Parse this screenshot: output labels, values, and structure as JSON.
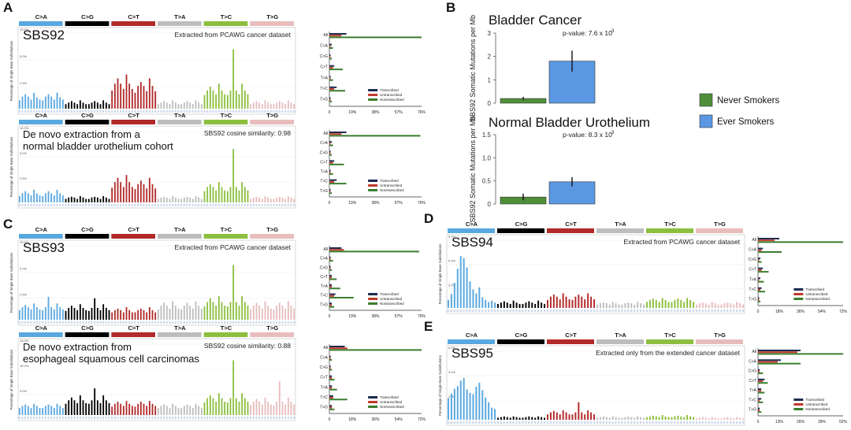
{
  "panel_letters": {
    "A": "A",
    "B": "B",
    "C": "C",
    "D": "D",
    "E": "E"
  },
  "mutation_types": [
    "C>A",
    "C>G",
    "C>T",
    "T>A",
    "T>C",
    "T>G"
  ],
  "type_colors": [
    "#59a8e0",
    "#000000",
    "#b22a2a",
    "#bdbdbd",
    "#8cbf3f",
    "#e8bcbc"
  ],
  "strand_labels": [
    "All",
    "C>A",
    "C>G",
    "C>T",
    "T>A",
    "T>C",
    "T>G"
  ],
  "strand_legend": [
    "Transcribed",
    "Untranscribed",
    "Nontranscribed"
  ],
  "strand_colors": [
    "#1d2b4f",
    "#c0392b",
    "#3a7d2c"
  ],
  "y_axis_title": "Percentage of Single Base Substitutions",
  "chart_data": [
    {
      "type": "bar",
      "panel": "A",
      "signature": "SBS92",
      "source": "Extracted from PCAWG cancer dataset",
      "y_ticks": [
        "10.0%",
        "5.0%",
        "2.5%"
      ],
      "strand_ticks": [
        "0",
        "19%",
        "38%",
        "57%",
        "76%"
      ],
      "strand_max": 76,
      "strand_values": [
        [
          14,
          10,
          76
        ],
        [
          2,
          1,
          3
        ],
        [
          1,
          1,
          2
        ],
        [
          4,
          3,
          11
        ],
        [
          1,
          1,
          3
        ],
        [
          6,
          4,
          13
        ],
        [
          1,
          1,
          2
        ]
      ],
      "context_values": [
        1.1,
        1.6,
        1.9,
        1.6,
        1.2,
        2.1,
        1.5,
        1.2,
        1.1,
        1.6,
        1.9,
        1.6,
        1.2,
        2.1,
        1.5,
        1.2,
        0.6,
        0.8,
        1.0,
        0.8,
        0.6,
        1.1,
        0.8,
        0.6,
        0.6,
        0.8,
        1.0,
        0.8,
        0.6,
        1.1,
        0.8,
        0.6,
        2.4,
        3.3,
        4.0,
        3.3,
        2.6,
        4.5,
        3.3,
        2.6,
        2.1,
        3.0,
        3.5,
        3.0,
        2.3,
        4.0,
        3.0,
        2.3,
        0.6,
        0.8,
        1.0,
        0.8,
        0.6,
        1.1,
        0.8,
        0.6,
        0.6,
        0.8,
        1.0,
        0.8,
        0.6,
        1.1,
        0.8,
        0.6,
        1.8,
        2.4,
        2.9,
        2.4,
        1.9,
        3.3,
        2.4,
        1.9,
        1.8,
        2.4,
        7.8,
        2.4,
        1.9,
        3.3,
        2.4,
        1.9,
        0.6,
        0.8,
        1.0,
        0.8,
        0.6,
        1.1,
        0.8,
        0.6,
        0.6,
        0.8,
        1.0,
        0.8,
        0.6,
        1.1,
        0.8,
        0.6
      ]
    },
    {
      "type": "bar",
      "panel": "A",
      "signature": "De novo extraction from a normal bladder urothelium cohort",
      "source": "SBS92 cosine similarity: 0.98",
      "y_ticks": [
        "10.0%",
        "5.0%",
        "2.5%"
      ],
      "strand_ticks": [
        "0",
        "19%",
        "38%",
        "57%",
        "76%"
      ],
      "strand_max": 76,
      "strand_values": [
        [
          14,
          10,
          75
        ],
        [
          2,
          1,
          3
        ],
        [
          1,
          1,
          2
        ],
        [
          4,
          3,
          12
        ],
        [
          1,
          1,
          3
        ],
        [
          6,
          4,
          14
        ],
        [
          1,
          1,
          2
        ]
      ],
      "context_values": [
        0.9,
        1.3,
        1.6,
        1.3,
        1.0,
        1.8,
        1.3,
        1.0,
        0.9,
        1.3,
        1.6,
        1.3,
        1.0,
        1.8,
        1.3,
        1.0,
        0.5,
        0.7,
        0.8,
        0.7,
        0.5,
        0.9,
        0.7,
        0.5,
        0.5,
        0.7,
        0.8,
        0.7,
        0.5,
        0.9,
        0.7,
        0.5,
        2.1,
        2.9,
        3.5,
        2.9,
        2.2,
        3.9,
        2.9,
        2.2,
        1.9,
        2.6,
        3.1,
        2.6,
        2.0,
        3.5,
        2.6,
        2.0,
        0.5,
        0.7,
        0.8,
        0.7,
        0.5,
        0.9,
        0.7,
        0.5,
        0.5,
        0.7,
        0.8,
        0.7,
        0.5,
        0.9,
        0.7,
        0.5,
        1.6,
        2.2,
        2.6,
        2.2,
        1.7,
        2.9,
        2.2,
        1.7,
        1.6,
        2.2,
        7.6,
        2.2,
        1.7,
        2.9,
        2.2,
        1.7,
        0.5,
        0.7,
        0.8,
        0.7,
        0.5,
        0.9,
        0.7,
        0.5,
        0.5,
        0.7,
        0.8,
        0.7,
        0.5,
        0.9,
        0.7,
        0.5
      ]
    },
    {
      "type": "bar",
      "panel": "C",
      "signature": "SBS93",
      "source": "Extracted from PCAWG cancer dataset",
      "y_ticks": [
        "10.0%",
        "5.0%",
        "2.5%"
      ],
      "strand_ticks": [
        "0",
        "19%",
        "38%",
        "57%",
        "76%"
      ],
      "strand_max": 76,
      "strand_values": [
        [
          10,
          12,
          74
        ],
        [
          1,
          1,
          3
        ],
        [
          1,
          1,
          2
        ],
        [
          2,
          2,
          6
        ],
        [
          2,
          2,
          9
        ],
        [
          5,
          4,
          20
        ],
        [
          2,
          2,
          4
        ]
      ],
      "context_values": [
        1.3,
        1.7,
        2.0,
        1.7,
        1.4,
        2.2,
        1.7,
        1.4,
        1.3,
        1.7,
        3.1,
        1.7,
        1.4,
        2.2,
        1.7,
        1.4,
        1.2,
        1.6,
        1.9,
        1.6,
        1.3,
        2.1,
        1.6,
        1.3,
        1.2,
        1.6,
        2.9,
        1.6,
        1.3,
        2.1,
        1.6,
        1.3,
        1.0,
        1.3,
        1.5,
        1.3,
        1.0,
        1.7,
        1.3,
        1.0,
        1.0,
        1.3,
        1.5,
        1.3,
        1.0,
        1.7,
        1.3,
        1.0,
        1.4,
        1.9,
        2.3,
        1.9,
        1.5,
        2.5,
        1.9,
        1.5,
        1.4,
        1.9,
        2.3,
        1.9,
        1.5,
        2.5,
        1.9,
        1.5,
        1.8,
        2.4,
        2.9,
        2.4,
        1.9,
        3.2,
        2.4,
        1.9,
        1.8,
        2.4,
        7.4,
        2.4,
        1.9,
        3.2,
        2.4,
        1.9,
        1.4,
        1.9,
        2.3,
        1.9,
        1.5,
        2.5,
        1.9,
        1.5,
        1.4,
        1.9,
        2.3,
        1.9,
        1.5,
        2.5,
        1.9,
        1.5
      ]
    },
    {
      "type": "bar",
      "panel": "C",
      "signature": "De novo extraction from esophageal squamous cell carcinomas",
      "source": "SBS92 cosine similarity: 0.88",
      "y_ticks": [
        "15.0%",
        "10.0%",
        "5.0%"
      ],
      "strand_ticks": [
        "0",
        "18%",
        "36%",
        "54%",
        "72%"
      ],
      "strand_max": 72,
      "strand_values": [
        [
          12,
          14,
          72
        ],
        [
          1,
          1,
          2
        ],
        [
          1,
          1,
          2
        ],
        [
          2,
          2,
          4
        ],
        [
          2,
          2,
          6
        ],
        [
          3,
          3,
          14
        ],
        [
          2,
          2,
          4
        ]
      ],
      "context_values": [
        1.0,
        1.3,
        1.5,
        1.3,
        1.0,
        1.6,
        1.3,
        1.0,
        1.0,
        1.3,
        1.5,
        1.3,
        1.0,
        1.6,
        1.3,
        1.0,
        1.6,
        2.1,
        2.5,
        2.1,
        1.7,
        2.8,
        2.1,
        1.7,
        1.6,
        2.1,
        3.8,
        2.1,
        1.7,
        2.8,
        2.1,
        1.7,
        1.2,
        1.6,
        1.9,
        1.6,
        1.3,
        2.0,
        1.6,
        1.3,
        1.2,
        1.6,
        1.9,
        1.6,
        1.3,
        2.0,
        1.6,
        1.3,
        1.0,
        1.3,
        1.5,
        1.3,
        1.0,
        1.6,
        1.3,
        1.0,
        1.0,
        1.3,
        1.5,
        1.3,
        1.0,
        1.6,
        1.3,
        1.0,
        1.8,
        2.4,
        2.8,
        2.4,
        1.9,
        3.1,
        2.4,
        1.9,
        1.8,
        2.4,
        7.8,
        2.4,
        1.9,
        3.1,
        2.4,
        1.9,
        1.4,
        1.9,
        2.3,
        1.9,
        1.5,
        2.5,
        1.9,
        1.5,
        1.4,
        1.9,
        4.8,
        1.9,
        1.5,
        2.5,
        1.9,
        1.5
      ]
    },
    {
      "type": "bar",
      "panel": "D",
      "signature": "SBS94",
      "source": "Extracted from PCAWG cancer dataset",
      "y_ticks": [
        "9.0%",
        "6.0%",
        "3.0%"
      ],
      "strand_ticks": [
        "0",
        "18%",
        "36%",
        "54%",
        "72%"
      ],
      "strand_max": 72,
      "strand_values": [
        [
          18,
          14,
          72
        ],
        [
          4,
          3,
          20
        ],
        [
          2,
          1,
          3
        ],
        [
          4,
          3,
          9
        ],
        [
          2,
          1,
          5
        ],
        [
          3,
          2,
          6
        ],
        [
          1,
          1,
          2
        ]
      ],
      "context_values": [
        1.2,
        2.1,
        3.8,
        5.9,
        7.8,
        7.5,
        6.1,
        4.0,
        2.8,
        2.2,
        3.1,
        1.6,
        1.2,
        0.9,
        1.1,
        0.8,
        0.6,
        0.8,
        1.0,
        0.8,
        0.6,
        1.1,
        0.8,
        0.6,
        0.6,
        0.8,
        1.0,
        0.8,
        0.6,
        1.1,
        0.8,
        0.6,
        1.2,
        1.7,
        2.0,
        1.7,
        1.3,
        2.2,
        1.7,
        1.3,
        1.2,
        1.7,
        2.0,
        1.7,
        1.3,
        2.2,
        1.7,
        1.3,
        0.5,
        0.7,
        0.8,
        0.7,
        0.5,
        0.9,
        0.7,
        0.5,
        0.5,
        0.7,
        0.8,
        0.7,
        0.5,
        0.9,
        0.7,
        0.5,
        0.9,
        1.2,
        1.4,
        1.2,
        0.9,
        1.5,
        1.2,
        0.9,
        0.9,
        1.2,
        1.4,
        1.2,
        0.9,
        1.5,
        1.2,
        0.9,
        0.5,
        0.7,
        0.8,
        0.7,
        0.5,
        0.9,
        0.7,
        0.5,
        0.5,
        0.7,
        0.8,
        0.7,
        0.5,
        0.9,
        0.7,
        0.5
      ]
    },
    {
      "type": "bar",
      "panel": "E",
      "signature": "SBS95",
      "source": "Extracted only from the extended cancer dataset",
      "y_ticks": [
        "6.0%",
        "4.0%",
        "2.0%"
      ],
      "strand_ticks": [
        "0",
        "13%",
        "26%",
        "39%",
        "52%"
      ],
      "strand_max": 52,
      "strand_values": [
        [
          26,
          24,
          52
        ],
        [
          14,
          12,
          26
        ],
        [
          1,
          1,
          3
        ],
        [
          4,
          3,
          6
        ],
        [
          2,
          2,
          4
        ],
        [
          2,
          1,
          3
        ],
        [
          1,
          1,
          2
        ]
      ],
      "context_values": [
        3.2,
        3.9,
        4.6,
        5.0,
        5.8,
        6.2,
        4.5,
        4.0,
        3.8,
        4.9,
        5.5,
        4.4,
        3.3,
        2.6,
        1.8,
        1.6,
        0.3,
        0.4,
        0.5,
        0.4,
        0.3,
        0.5,
        0.4,
        0.3,
        0.3,
        0.4,
        0.5,
        0.4,
        0.3,
        0.5,
        0.4,
        0.3,
        0.8,
        1.1,
        1.3,
        1.1,
        0.8,
        1.4,
        1.1,
        0.8,
        0.8,
        1.1,
        2.6,
        1.1,
        0.8,
        1.4,
        1.1,
        0.8,
        0.3,
        0.4,
        0.5,
        0.4,
        0.3,
        0.5,
        0.4,
        0.3,
        0.3,
        0.4,
        0.5,
        0.4,
        0.3,
        0.5,
        0.4,
        0.3,
        0.4,
        0.5,
        0.6,
        0.5,
        0.4,
        0.7,
        0.5,
        0.4,
        0.4,
        0.5,
        0.6,
        0.5,
        0.4,
        0.7,
        0.5,
        0.4,
        0.2,
        0.3,
        0.4,
        0.3,
        0.2,
        0.4,
        0.3,
        0.2,
        0.2,
        0.3,
        0.4,
        0.3,
        0.2,
        0.4,
        0.3,
        0.2
      ]
    },
    {
      "type": "bar",
      "panel": "B",
      "title": "Bladder Cancer",
      "pvalue": "p-value: 7.6 x 10",
      "pvalue_exp": "-3",
      "ylabel": "SBS92 Somatic Mutations per Mb",
      "ylim": [
        0,
        3
      ],
      "y_ticks": [
        "3",
        "2",
        "1",
        "0"
      ],
      "categories": [
        "Never Smokers",
        "Ever Smokers"
      ],
      "values": [
        0.2,
        1.8
      ],
      "errors": [
        0.07,
        0.45
      ],
      "colors": [
        "#4f8f3a",
        "#5a98e3"
      ]
    },
    {
      "type": "bar",
      "panel": "B",
      "title": "Normal Bladder Urothelium",
      "pvalue": "p-value: 8.3 x 10",
      "pvalue_exp": "-3",
      "ylabel": "SBS92 Somatic Mutations per Mb",
      "ylim": [
        0,
        1.5
      ],
      "y_ticks": [
        "1.5",
        "1.0",
        "0.5",
        "0"
      ],
      "categories": [
        "Never Smokers",
        "Ever Smokers"
      ],
      "values": [
        0.15,
        0.48
      ],
      "errors": [
        0.07,
        0.1
      ],
      "colors": [
        "#4f8f3a",
        "#5a98e3"
      ]
    }
  ],
  "legend_b": {
    "never": "Never Smokers",
    "ever": "Ever Smokers"
  }
}
